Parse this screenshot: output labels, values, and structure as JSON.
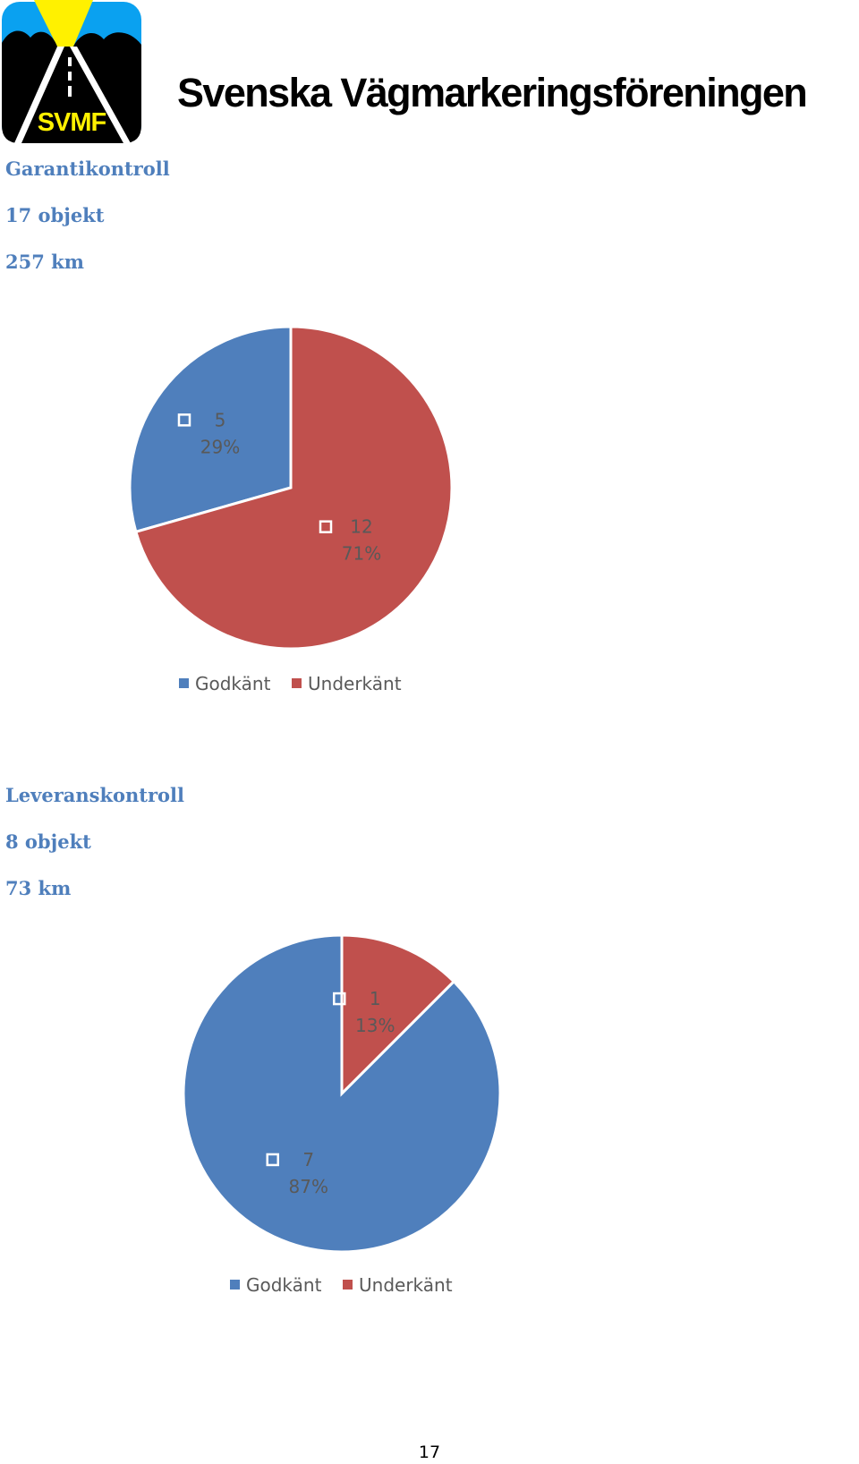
{
  "header": {
    "logo_text": "SVMF",
    "org_name": "Svenska Vägmarkeringsföreningen"
  },
  "sections": [
    {
      "title": "Garantikontroll",
      "objects": "17 objekt",
      "distance": "257 km"
    },
    {
      "title": "Leveranskontroll",
      "objects": "8 objekt",
      "distance": "73 km"
    }
  ],
  "colors": {
    "godkant": "#4f7fbc",
    "underkant": "#c0504d",
    "label_text": "#595959",
    "heading": "#4f7fbc"
  },
  "chart_data": [
    {
      "type": "pie",
      "categories": [
        "Godkänt",
        "Underkänt"
      ],
      "values": [
        5,
        12
      ],
      "data_labels": [
        {
          "value": "5",
          "percent": "29%"
        },
        {
          "value": "12",
          "percent": "71%"
        }
      ],
      "legend": [
        "Godkänt",
        "Underkänt"
      ],
      "legend_position": "bottom"
    },
    {
      "type": "pie",
      "categories": [
        "Godkänt",
        "Underkänt"
      ],
      "values": [
        7,
        1
      ],
      "data_labels": [
        {
          "value": "7",
          "percent": "87%"
        },
        {
          "value": "1",
          "percent": "13%"
        }
      ],
      "legend": [
        "Godkänt",
        "Underkänt"
      ],
      "legend_position": "bottom"
    }
  ],
  "footer": {
    "page_number": "17"
  }
}
